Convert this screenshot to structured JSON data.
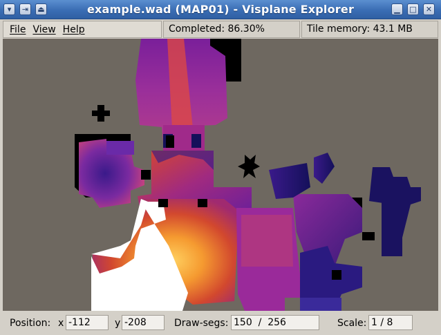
{
  "window": {
    "title": "example.wad (MAP01) - Visplane Explorer",
    "buttons": {
      "menu": "▾",
      "pin": "⇥",
      "shade": "⏏",
      "minimize": "▁",
      "maximize": "□",
      "close": "✕"
    }
  },
  "menubar": {
    "items": [
      {
        "label": "File"
      },
      {
        "label": "View"
      },
      {
        "label": "Help"
      }
    ]
  },
  "status": {
    "completed": "Completed: 86.30%",
    "tile_memory": "Tile memory: 43.1 MB"
  },
  "bottom": {
    "position_label": "Position:",
    "x_label": "x",
    "x_value": "-112",
    "y_label": "y",
    "y_value": "-208",
    "drawsegs_label": "Draw-segs:",
    "drawsegs_value": "150  /  256",
    "scale_label": "Scale:",
    "scale_value": "1 / 8"
  },
  "colors": {
    "background": "#6e6860",
    "void": "#000000",
    "low": "#1a1260",
    "mid": "#8c2aa0",
    "high": "#f07020",
    "max": "#ffffff"
  }
}
